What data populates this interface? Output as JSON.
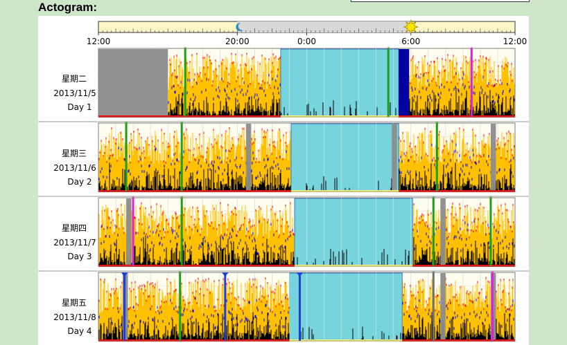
{
  "heading": "Actogram:",
  "timeline": {
    "ticks": [
      "12:00",
      "20:00",
      "0:00",
      "6:00",
      "12:00"
    ],
    "tick_hours": [
      12,
      20,
      24,
      30,
      36
    ],
    "night_start": 20,
    "night_end": 30,
    "moon_icon": "moon-icon",
    "sun_icon": "sun-icon"
  },
  "chart_data": {
    "type": "heatmap",
    "description_units": "hours on a 12:00-to-12:00 axis (24 = midnight)",
    "x_range": [
      12,
      36
    ],
    "days": [
      {
        "weekday": "星期二",
        "date": "2013/11/5",
        "day_label": "Day 1",
        "offwrist": [
          [
            12,
            16
          ]
        ],
        "sleep": [
          [
            22.5,
            29.3
          ]
        ],
        "deep": [
          [
            29.3,
            29.9
          ]
        ],
        "events": [
          {
            "t": 17,
            "kind": "green"
          },
          {
            "t": 28.7,
            "kind": "green"
          },
          {
            "t": 33.5,
            "kind": "magenta"
          }
        ]
      },
      {
        "weekday": "星期三",
        "date": "2013/11/6",
        "day_label": "Day 2",
        "offwrist": [
          [
            20.5,
            20.8
          ],
          [
            28.9,
            29.2
          ],
          [
            34.6,
            34.9
          ]
        ],
        "sleep": [
          [
            23.1,
            29.3
          ]
        ],
        "deep": [],
        "events": [
          {
            "t": 13.6,
            "kind": "green"
          },
          {
            "t": 16.8,
            "kind": "green"
          },
          {
            "t": 31.5,
            "kind": "green"
          }
        ]
      },
      {
        "weekday": "星期四",
        "date": "2013/11/7",
        "day_label": "Day 3",
        "offwrist": [
          [
            13.6,
            13.9
          ],
          [
            31.7,
            32.0
          ]
        ],
        "sleep": [
          [
            23.3,
            30.1
          ]
        ],
        "deep": [],
        "events": [
          {
            "t": 14.0,
            "kind": "magenta"
          },
          {
            "t": 16.8,
            "kind": "green"
          },
          {
            "t": 31.3,
            "kind": "green"
          },
          {
            "t": 34.6,
            "kind": "green"
          }
        ]
      },
      {
        "weekday": "星期五",
        "date": "2013/11/8",
        "day_label": "Day 4",
        "offwrist": [
          [
            13.4,
            13.7
          ],
          [
            31.7,
            32.0
          ],
          [
            34.6,
            34.9
          ]
        ],
        "sleep": [
          [
            23.0,
            29.5
          ]
        ],
        "deep": [],
        "events": [
          {
            "t": 13.5,
            "kind": "blue"
          },
          {
            "t": 16.7,
            "kind": "green"
          },
          {
            "t": 19.3,
            "kind": "blue"
          },
          {
            "t": 23.6,
            "kind": "blue"
          },
          {
            "t": 31.3,
            "kind": "gray"
          },
          {
            "t": 34.7,
            "kind": "magenta"
          }
        ]
      }
    ]
  },
  "colors": {
    "panel_bg": "#cfe6c8",
    "night": "#d8d8d8",
    "day": "#fbf6c6",
    "sleep": "#77d4dc",
    "offwrist": "#8c8c8c",
    "deep": "#0000a0",
    "activity_high": "#ffc000",
    "activity_mid": "#ff0000",
    "activity_low": "#0000ff",
    "activity_base": "#000000",
    "wake_bar": "#ff0000"
  }
}
